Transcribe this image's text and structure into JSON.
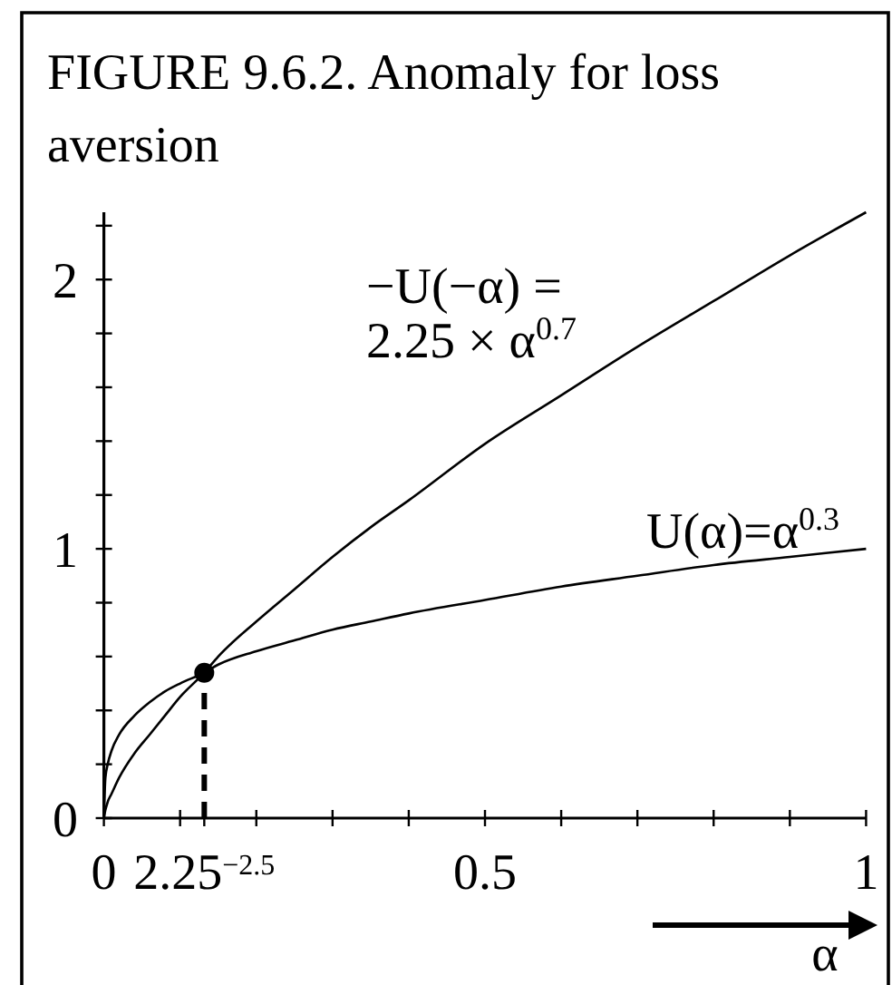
{
  "chart_data": {
    "type": "line",
    "title": "FIGURE 9.6.2. Anomaly for loss aversion",
    "xlabel": "α",
    "xlim": [
      0,
      1
    ],
    "xticks": [
      0,
      {
        "value": 0.1,
        "label": null
      },
      {
        "value": 0.1317,
        "label": "2.25$^{−2.5}$"
      },
      {
        "value": 0.2,
        "label": null
      },
      {
        "value": 0.3,
        "label": null
      },
      {
        "value": 0.4,
        "label": null
      },
      0.5,
      {
        "value": 0.6,
        "label": null
      },
      {
        "value": 0.7,
        "label": null
      },
      {
        "value": 0.8,
        "label": null
      },
      {
        "value": 0.9,
        "label": null
      },
      1
    ],
    "ylim": [
      0,
      2.25
    ],
    "yticks": [
      0,
      {
        "value": 0.2,
        "label": null
      },
      {
        "value": 0.4,
        "label": null
      },
      {
        "value": 0.6,
        "label": null
      },
      {
        "value": 0.8,
        "label": null
      },
      1,
      {
        "value": 1.2,
        "label": null
      },
      {
        "value": 1.4,
        "label": null
      },
      {
        "value": 1.6,
        "label": null
      },
      {
        "value": 1.8,
        "label": null
      },
      2,
      {
        "value": 2.2,
        "label": null
      }
    ],
    "marker": "none",
    "line_style": "solid",
    "series": [
      {
        "name": "−U(−α) =\n2.25 × α$^{0.7}$",
        "color": "#000000",
        "x": [
          0,
          0.002,
          0.005,
          0.01,
          0.02,
          0.04,
          0.06,
          0.08,
          0.1,
          0.1317,
          0.15,
          0.2,
          0.25,
          0.3,
          0.35,
          0.4,
          0.5,
          0.6,
          0.7,
          0.8,
          0.9,
          1
        ],
        "values": [
          0,
          0.03,
          0.06,
          0.09,
          0.15,
          0.24,
          0.31,
          0.38,
          0.45,
          0.54,
          0.6,
          0.73,
          0.85,
          0.97,
          1.08,
          1.18,
          1.39,
          1.57,
          1.75,
          1.92,
          2.09,
          2.25
        ]
      },
      {
        "name": "U(α)=α$^{0.3}$",
        "color": "#000000",
        "x": [
          0,
          0.002,
          0.005,
          0.01,
          0.02,
          0.04,
          0.06,
          0.08,
          0.1,
          0.1317,
          0.15,
          0.2,
          0.25,
          0.3,
          0.35,
          0.4,
          0.5,
          0.6,
          0.7,
          0.8,
          0.9,
          1
        ],
        "values": [
          0,
          0.15,
          0.2,
          0.25,
          0.31,
          0.38,
          0.43,
          0.47,
          0.5,
          0.54,
          0.57,
          0.62,
          0.66,
          0.7,
          0.73,
          0.76,
          0.81,
          0.86,
          0.9,
          0.94,
          0.97,
          1
        ]
      },
      {
        "type": "line",
        "color": "#000000",
        "line_style": "dashed",
        "x": [
          0.1317,
          0.1317
        ],
        "values": [
          0,
          0.54
        ]
      },
      {
        "type": "scatter",
        "color": "#000000",
        "marker": "circle",
        "x": [
          0.1317
        ],
        "values": [
          0.54
        ]
      }
    ]
  }
}
